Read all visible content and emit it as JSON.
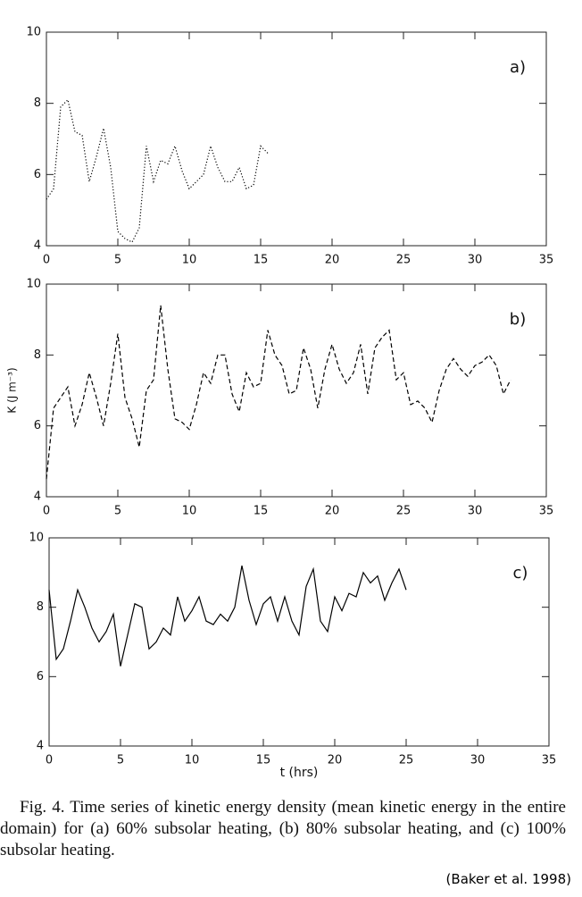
{
  "chart_data": [
    {
      "type": "line",
      "label": "a)",
      "line_style": "dotted",
      "x": [
        0,
        0.5,
        1,
        1.5,
        2,
        2.5,
        3,
        3.5,
        4,
        4.5,
        5,
        5.5,
        6,
        6.5,
        7,
        7.5,
        8,
        8.5,
        9,
        9.5,
        10,
        10.5,
        11,
        11.5,
        12,
        12.5,
        13,
        13.5,
        14,
        14.5,
        15,
        15.5
      ],
      "series": [
        {
          "color": "#000000",
          "values": [
            5.3,
            5.6,
            7.9,
            8.1,
            7.2,
            7.1,
            5.8,
            6.5,
            7.3,
            6.2,
            4.4,
            4.2,
            4.1,
            4.5,
            6.8,
            5.8,
            6.4,
            6.3,
            6.8,
            6.1,
            5.6,
            5.8,
            6.0,
            6.8,
            6.2,
            5.8,
            5.8,
            6.2,
            5.6,
            5.7,
            6.8,
            6.6
          ]
        }
      ],
      "xlim": [
        0,
        35
      ],
      "xticks": [
        0,
        5,
        10,
        15,
        20,
        25,
        30,
        35
      ],
      "ylim": [
        4,
        10
      ],
      "yticks": [
        4,
        6,
        8,
        10
      ]
    },
    {
      "type": "line",
      "label": "b)",
      "line_style": "dashed",
      "y_label": "K (J m⁻³)",
      "x": [
        0,
        0.5,
        1,
        1.5,
        2,
        2.5,
        3,
        3.5,
        4,
        4.5,
        5,
        5.5,
        6,
        6.5,
        7,
        7.5,
        8,
        8.5,
        9,
        9.5,
        10,
        10.5,
        11,
        11.5,
        12,
        12.5,
        13,
        13.5,
        14,
        14.5,
        15,
        15.5,
        16,
        16.5,
        17,
        17.5,
        18,
        18.5,
        19,
        19.5,
        20,
        20.5,
        21,
        21.5,
        22,
        22.5,
        23,
        23.5,
        24,
        24.5,
        25,
        25.5,
        26,
        26.5,
        27,
        27.5,
        28,
        28.5,
        29,
        29.5,
        30,
        30.5,
        31,
        31.5,
        32,
        32.5
      ],
      "series": [
        {
          "color": "#000000",
          "values": [
            4.5,
            6.5,
            6.8,
            7.1,
            6.0,
            6.6,
            7.5,
            6.8,
            6.0,
            7.2,
            8.6,
            6.8,
            6.2,
            5.4,
            7.0,
            7.3,
            9.4,
            7.6,
            6.2,
            6.1,
            5.9,
            6.6,
            7.5,
            7.2,
            8.0,
            8.0,
            6.9,
            6.4,
            7.5,
            7.1,
            7.2,
            8.7,
            8.0,
            7.7,
            6.9,
            7.0,
            8.2,
            7.6,
            6.5,
            7.6,
            8.3,
            7.6,
            7.2,
            7.5,
            8.3,
            6.9,
            8.2,
            8.5,
            8.7,
            7.3,
            7.5,
            6.6,
            6.7,
            6.5,
            6.1,
            7.0,
            7.6,
            7.9,
            7.6,
            7.4,
            7.7,
            7.8,
            8.0,
            7.7,
            6.9,
            7.3
          ]
        }
      ],
      "xlim": [
        0,
        35
      ],
      "xticks": [
        0,
        5,
        10,
        15,
        20,
        25,
        30,
        35
      ],
      "ylim": [
        4,
        10
      ],
      "yticks": [
        4,
        6,
        8,
        10
      ]
    },
    {
      "type": "line",
      "label": "c)",
      "line_style": "solid",
      "x_label": "t (hrs)",
      "x": [
        0,
        0.5,
        1,
        1.5,
        2,
        2.5,
        3,
        3.5,
        4,
        4.5,
        5,
        5.5,
        6,
        6.5,
        7,
        7.5,
        8,
        8.5,
        9,
        9.5,
        10,
        10.5,
        11,
        11.5,
        12,
        12.5,
        13,
        13.5,
        14,
        14.5,
        15,
        15.5,
        16,
        16.5,
        17,
        17.5,
        18,
        18.5,
        19,
        19.5,
        20,
        20.5,
        21,
        21.5,
        22,
        22.5,
        23,
        23.5,
        24,
        24.5,
        25
      ],
      "series": [
        {
          "color": "#000000",
          "values": [
            8.5,
            6.5,
            6.8,
            7.6,
            8.5,
            8.0,
            7.4,
            7.0,
            7.3,
            7.8,
            6.3,
            7.2,
            8.1,
            8.0,
            6.8,
            7.0,
            7.4,
            7.2,
            8.3,
            7.6,
            7.9,
            8.3,
            7.6,
            7.5,
            7.8,
            7.6,
            8.0,
            9.2,
            8.2,
            7.5,
            8.1,
            8.3,
            7.6,
            8.3,
            7.6,
            7.2,
            8.6,
            9.1,
            7.6,
            7.3,
            8.3,
            7.9,
            8.4,
            8.3,
            9.0,
            8.7,
            8.9,
            8.2,
            8.7,
            9.1,
            8.5
          ]
        }
      ],
      "xlim": [
        0,
        35
      ],
      "xticks": [
        0,
        5,
        10,
        15,
        20,
        25,
        30,
        35
      ],
      "ylim": [
        4,
        10
      ],
      "yticks": [
        4,
        6,
        8,
        10
      ]
    }
  ],
  "caption": "Fig. 4. Time series of kinetic energy density (mean kinetic energy in the entire domain) for (a) 60% subsolar heating, (b) 80% subsolar heating, and (c) 100% subsolar heating.",
  "credit": "(Baker et al. 1998)"
}
